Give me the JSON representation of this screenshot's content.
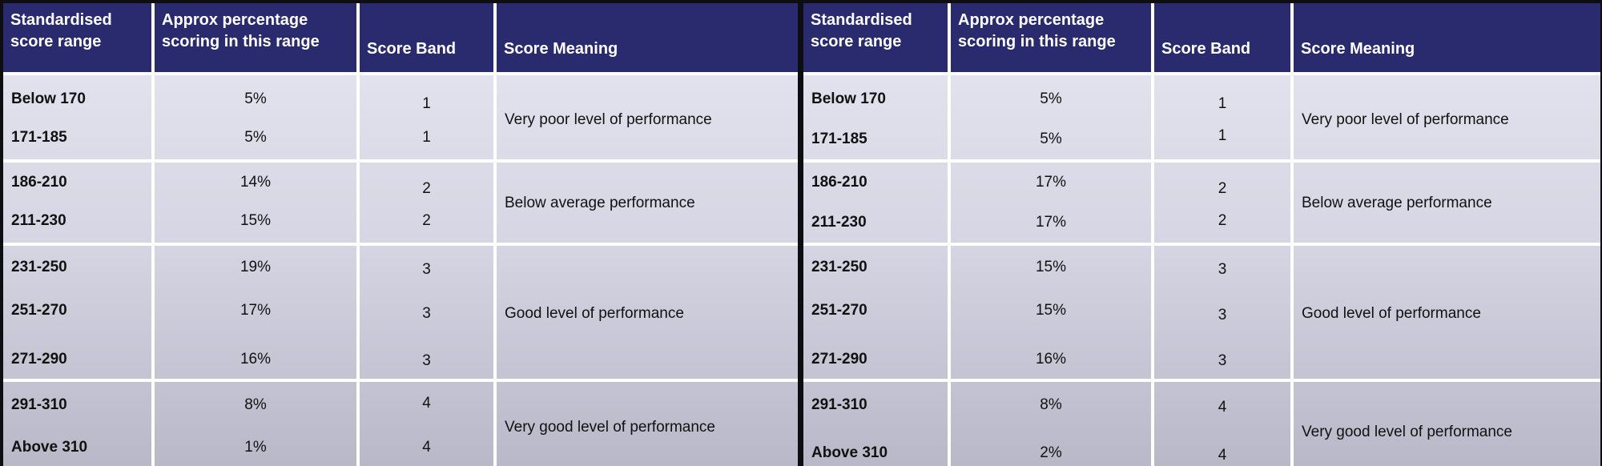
{
  "headers": {
    "range_line1": "Standardised",
    "range_line2": "score range",
    "pct_line1": "Approx percentage",
    "pct_line2": "scoring in this range",
    "band": "Score Band",
    "meaning": "Score Meaning"
  },
  "left": {
    "rows": [
      {
        "range": "Below 170",
        "pct": "5%",
        "band": "1"
      },
      {
        "range": "171-185",
        "pct": "5%",
        "band": "1"
      },
      {
        "range": "186-210",
        "pct": "14%",
        "band": "2"
      },
      {
        "range": "211-230",
        "pct": "15%",
        "band": "2"
      },
      {
        "range": "231-250",
        "pct": "19%",
        "band": "3"
      },
      {
        "range": "251-270",
        "pct": "17%",
        "band": "3"
      },
      {
        "range": "271-290",
        "pct": "16%",
        "band": "3"
      },
      {
        "range": "291-310",
        "pct": "8%",
        "band": "4"
      },
      {
        "range": "Above 310",
        "pct": "1%",
        "band": "4"
      }
    ],
    "meanings": [
      "Very poor level of performance",
      "Below average performance",
      "Good level of performance",
      "Very good level of performance"
    ]
  },
  "right": {
    "rows": [
      {
        "range": "Below 170",
        "pct": "5%",
        "band": "1"
      },
      {
        "range": "171-185",
        "pct": "5%",
        "band": "1"
      },
      {
        "range": "186-210",
        "pct": "17%",
        "band": "2"
      },
      {
        "range": "211-230",
        "pct": "17%",
        "band": "2"
      },
      {
        "range": "231-250",
        "pct": "15%",
        "band": "3"
      },
      {
        "range": "251-270",
        "pct": "15%",
        "band": "3"
      },
      {
        "range": "271-290",
        "pct": "16%",
        "band": "3"
      },
      {
        "range": "291-310",
        "pct": "8%",
        "band": "4"
      },
      {
        "range": "Above 310",
        "pct": "2%",
        "band": "4"
      }
    ],
    "meanings": [
      "Very poor level of performance",
      "Below average performance",
      "Good level of performance",
      "Very good level of performance"
    ]
  }
}
